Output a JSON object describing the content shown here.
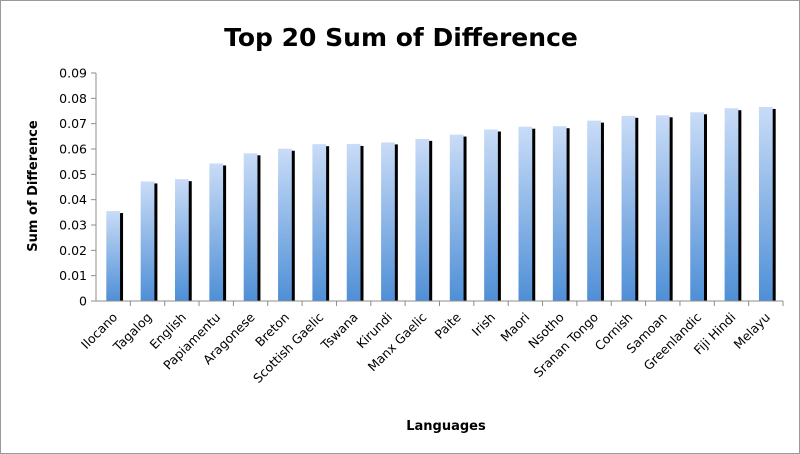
{
  "chart_data": {
    "type": "bar",
    "title": "Top 20 Sum of Difference",
    "xlabel": "Languages",
    "ylabel": "Sum of Difference",
    "ylim": [
      0,
      0.09
    ],
    "yticks": [
      "0",
      "0.01",
      "0.02",
      "0.03",
      "0.04",
      "0.05",
      "0.06",
      "0.07",
      "0.08",
      "0.09"
    ],
    "grid": false,
    "legend": "none",
    "categories": [
      "Ilocano",
      "Tagalog",
      "English",
      "Papiamentu",
      "Aragonese",
      "Breton",
      "Scottish Gaelic",
      "Tswana",
      "Kirundi",
      "Manx Gaelic",
      "Paite",
      "Irish",
      "Maori",
      "Nsotho",
      "Sranan Tongo",
      "Cornish",
      "Samoan",
      "Greenlandic",
      "Fiji Hindi",
      "Melayu"
    ],
    "values": [
      0.0355,
      0.0472,
      0.0481,
      0.0543,
      0.0583,
      0.0601,
      0.0619,
      0.062,
      0.0626,
      0.064,
      0.0657,
      0.0677,
      0.0688,
      0.069,
      0.0712,
      0.0731,
      0.0733,
      0.0745,
      0.0761,
      0.0766
    ],
    "colors": {
      "bar_top": "#c9dcf7",
      "bar_bottom": "#4f8fd6",
      "shadow": "#000000",
      "axis": "#8c8c8c"
    }
  }
}
